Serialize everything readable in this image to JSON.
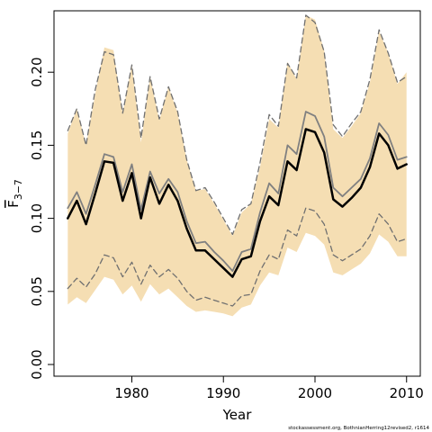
{
  "chart_data": {
    "type": "line",
    "xlabel": "Year",
    "ylabel": "F",
    "ylabel_subscript": "3−7",
    "xlim": [
      1971.5,
      2011.5
    ],
    "ylim": [
      -0.008,
      0.242
    ],
    "xticks": [
      1980,
      1990,
      2000,
      2010
    ],
    "yticks": [
      0.0,
      0.05,
      0.1,
      0.15,
      0.2
    ],
    "ytick_labels": [
      "0.00",
      "0.05",
      "0.10",
      "0.15",
      "0.20"
    ],
    "grid": false,
    "legend": "none",
    "footnote": "stockassessment.org, BothnianHerring12revised2, r1614",
    "colors": {
      "band": "#f5deb3",
      "estimate": "#000000",
      "previous": "#808080",
      "previous_ci": "#707070"
    },
    "x": [
      1973,
      1974,
      1975,
      1976,
      1977,
      1978,
      1979,
      1980,
      1981,
      1982,
      1983,
      1984,
      1985,
      1986,
      1987,
      1988,
      1989,
      1990,
      1991,
      1992,
      1993,
      1994,
      1995,
      1996,
      1997,
      1998,
      1999,
      2000,
      2001,
      2002,
      2003,
      2004,
      2005,
      2006,
      2007,
      2008,
      2009,
      2010
    ],
    "band_upper": [
      0.158,
      0.175,
      0.15,
      0.185,
      0.217,
      0.215,
      0.172,
      0.205,
      0.152,
      0.197,
      0.167,
      0.19,
      0.172,
      0.14,
      0.119,
      0.12,
      0.11,
      0.099,
      0.088,
      0.104,
      0.11,
      0.135,
      0.168,
      0.162,
      0.207,
      0.195,
      0.239,
      0.236,
      0.215,
      0.161,
      0.155,
      0.163,
      0.172,
      0.193,
      0.228,
      0.213,
      0.192,
      0.2
    ],
    "band_lower": [
      0.041,
      0.046,
      0.042,
      0.051,
      0.06,
      0.058,
      0.048,
      0.054,
      0.043,
      0.055,
      0.048,
      0.052,
      0.046,
      0.04,
      0.036,
      0.037,
      0.036,
      0.035,
      0.033,
      0.039,
      0.041,
      0.054,
      0.063,
      0.061,
      0.08,
      0.077,
      0.09,
      0.088,
      0.082,
      0.063,
      0.061,
      0.065,
      0.069,
      0.076,
      0.089,
      0.084,
      0.074,
      0.074
    ],
    "series": [
      {
        "values": [
          0.1,
          0.112,
          0.096,
          0.117,
          0.139,
          0.138,
          0.112,
          0.131,
          0.1,
          0.128,
          0.11,
          0.123,
          0.112,
          0.093,
          0.078,
          0.078,
          0.072,
          0.066,
          0.06,
          0.072,
          0.074,
          0.098,
          0.115,
          0.109,
          0.139,
          0.133,
          0.161,
          0.159,
          0.145,
          0.113,
          0.108,
          0.114,
          0.121,
          0.135,
          0.158,
          0.15,
          0.134,
          0.137
        ]
      },
      {
        "values": [
          0.107,
          0.118,
          0.103,
          0.123,
          0.144,
          0.142,
          0.118,
          0.137,
          0.106,
          0.132,
          0.117,
          0.127,
          0.118,
          0.098,
          0.083,
          0.084,
          0.077,
          0.071,
          0.064,
          0.077,
          0.079,
          0.104,
          0.124,
          0.117,
          0.15,
          0.144,
          0.173,
          0.17,
          0.156,
          0.121,
          0.115,
          0.121,
          0.127,
          0.141,
          0.165,
          0.157,
          0.14,
          0.142
        ]
      },
      {
        "values": [
          0.16,
          0.175,
          0.15,
          0.188,
          0.214,
          0.212,
          0.172,
          0.205,
          0.155,
          0.197,
          0.168,
          0.19,
          0.173,
          0.14,
          0.119,
          0.121,
          0.111,
          0.1,
          0.089,
          0.106,
          0.11,
          0.138,
          0.171,
          0.163,
          0.206,
          0.196,
          0.239,
          0.234,
          0.214,
          0.164,
          0.156,
          0.165,
          0.173,
          0.195,
          0.229,
          0.213,
          0.193,
          0.197
        ]
      },
      {
        "values": [
          0.052,
          0.059,
          0.053,
          0.062,
          0.075,
          0.073,
          0.06,
          0.07,
          0.055,
          0.068,
          0.06,
          0.065,
          0.059,
          0.05,
          0.044,
          0.046,
          0.044,
          0.042,
          0.04,
          0.047,
          0.048,
          0.064,
          0.075,
          0.072,
          0.092,
          0.088,
          0.107,
          0.105,
          0.096,
          0.075,
          0.071,
          0.075,
          0.079,
          0.088,
          0.103,
          0.096,
          0.084,
          0.086
        ]
      }
    ]
  }
}
